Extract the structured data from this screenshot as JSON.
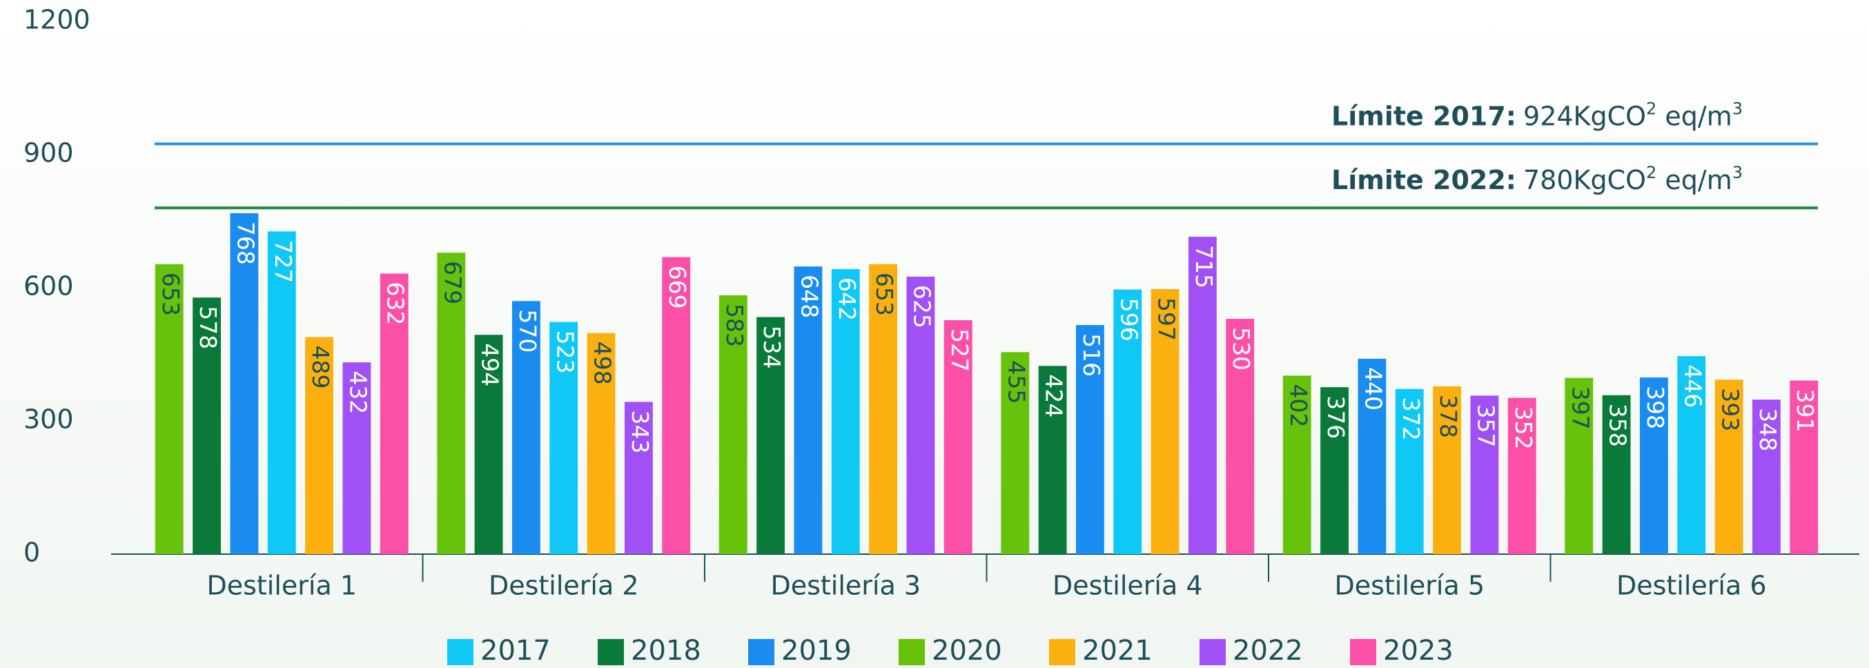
{
  "chart_data": {
    "type": "bar",
    "categories": [
      "Destilería 1",
      "Destilería 2",
      "Destilería 3",
      "Destilería 4",
      "Destilería 5",
      "Destilería 6"
    ],
    "series": [
      {
        "name": "2020",
        "color": "#66c20a",
        "label_color": "#1d4e5a",
        "values": [
          653,
          679,
          583,
          455,
          402,
          397
        ]
      },
      {
        "name": "2018",
        "color": "#0a7a3a",
        "label_color": "#ffffff",
        "values": [
          578,
          494,
          534,
          424,
          376,
          358
        ]
      },
      {
        "name": "2019",
        "color": "#1a8cf0",
        "label_color": "#ffffff",
        "values": [
          768,
          570,
          648,
          516,
          440,
          398
        ]
      },
      {
        "name": "2017",
        "color": "#0fc8f5",
        "label_color": "#ffffff",
        "values": [
          727,
          523,
          642,
          596,
          372,
          446
        ]
      },
      {
        "name": "2021",
        "color": "#fbb010",
        "label_color": "#1d4e5a",
        "values": [
          489,
          498,
          653,
          597,
          378,
          393
        ]
      },
      {
        "name": "2022",
        "color": "#a050f5",
        "label_color": "#ffffff",
        "values": [
          432,
          343,
          625,
          715,
          357,
          348
        ]
      },
      {
        "name": "2023",
        "color": "#fb4fa8",
        "label_color": "#ffffff",
        "values": [
          632,
          669,
          527,
          530,
          352,
          391
        ]
      }
    ],
    "ylim": [
      0,
      1200
    ],
    "yticks": [
      0,
      300,
      600,
      900,
      1200
    ],
    "grid": false,
    "annotations": [
      {
        "label": "Límite 2017:",
        "value": 924,
        "unit": "KgCO",
        "unit_sup": "2",
        "unit2": " eq/m",
        "unit2_sup": "3",
        "color": "#2a8fe0"
      },
      {
        "label": "Límite 2022:",
        "value": 780,
        "unit": "KgCO",
        "unit_sup": "2",
        "unit2": " eq/m",
        "unit2_sup": "3",
        "color": "#1e8a3c"
      }
    ],
    "legend": "bottom"
  }
}
